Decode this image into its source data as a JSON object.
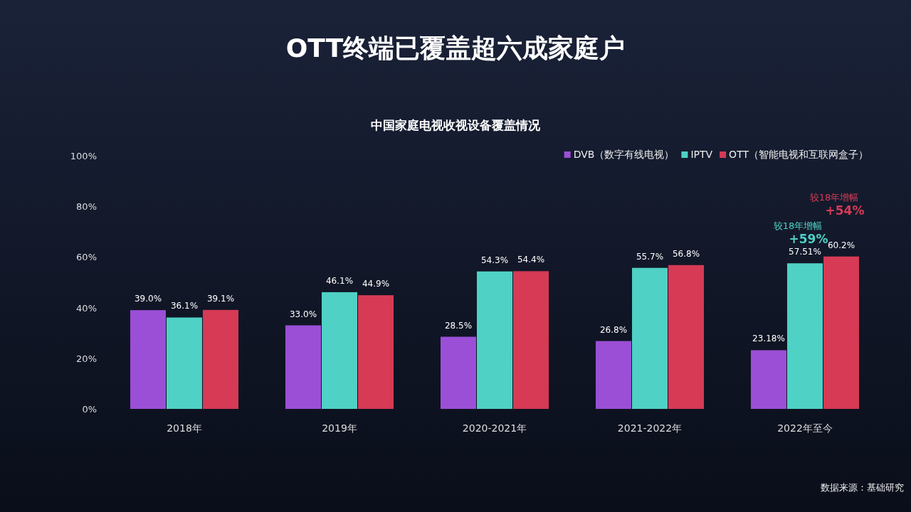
{
  "chart_data": {
    "type": "bar",
    "title": "OTT终端已覆盖超六成家庭户",
    "subtitle": "中国家庭电视收视设备覆盖情况",
    "categories": [
      "2018年",
      "2019年",
      "2020-2021年",
      "2021-2022年",
      "2022年至今"
    ],
    "series": [
      {
        "name": "DVB（数字有线电视）",
        "color": "#9b4fd6",
        "values": [
          39.0,
          33.0,
          28.5,
          26.8,
          23.18
        ],
        "value_labels": [
          "39.0%",
          "33.0%",
          "28.5%",
          "26.8%",
          "23.18%"
        ]
      },
      {
        "name": "IPTV",
        "color": "#4fd1c5",
        "values": [
          36.1,
          46.1,
          54.3,
          55.7,
          57.51
        ],
        "value_labels": [
          "36.1%",
          "46.1%",
          "54.3%",
          "55.7%",
          "57.51%"
        ]
      },
      {
        "name": "OTT（智能电视和互联网盒子）",
        "color": "#d63a55",
        "values": [
          39.1,
          44.9,
          54.4,
          56.8,
          60.2
        ],
        "value_labels": [
          "39.1%",
          "44.9%",
          "54.4%",
          "56.8%",
          "60.2%"
        ]
      }
    ],
    "ylim": [
      0,
      100
    ],
    "yticks": [
      {
        "value": 0,
        "label": "0%"
      },
      {
        "value": 20,
        "label": "20%"
      },
      {
        "value": 40,
        "label": "40%"
      },
      {
        "value": 60,
        "label": "60%"
      },
      {
        "value": 80,
        "label": "80%"
      },
      {
        "value": 100,
        "label": "100%"
      }
    ],
    "grid": false,
    "legend": "top right",
    "annotations": [
      {
        "text": "较18年增幅\n+59%",
        "x": "2022年至今",
        "y": 57.51
      },
      "较18年增幅\n+54%",
      "数据来源：基础研究"
    ]
  }
}
